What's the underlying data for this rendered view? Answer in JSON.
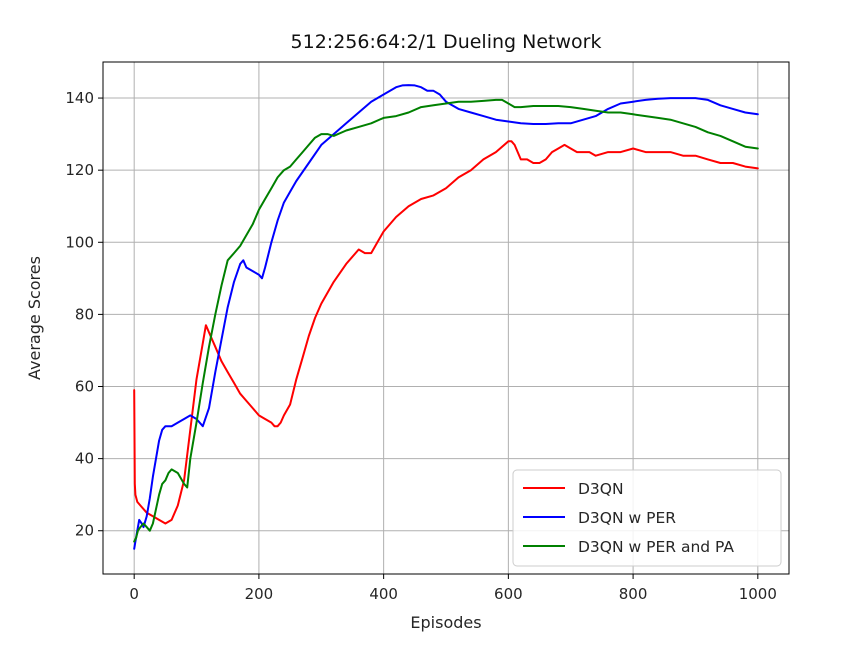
{
  "chart_data": {
    "type": "line",
    "title": "512:256:64:2/1 Dueling Network",
    "xlabel": "Episodes",
    "ylabel": "Average Scores",
    "xlim": [
      -50,
      1050
    ],
    "ylim": [
      8,
      150
    ],
    "xticks": [
      0,
      200,
      400,
      600,
      800,
      1000
    ],
    "yticks": [
      20,
      40,
      60,
      80,
      100,
      120,
      140
    ],
    "grid": true,
    "legend_position": "lower-right",
    "series": [
      {
        "name": "D3QN",
        "color": "#ff0000",
        "x": [
          0,
          1,
          2,
          5,
          10,
          20,
          30,
          40,
          50,
          60,
          70,
          80,
          90,
          100,
          110,
          115,
          120,
          130,
          140,
          150,
          160,
          170,
          180,
          190,
          200,
          210,
          220,
          225,
          230,
          235,
          240,
          250,
          260,
          270,
          280,
          290,
          300,
          320,
          340,
          360,
          370,
          375,
          380,
          390,
          400,
          420,
          440,
          460,
          480,
          500,
          520,
          540,
          560,
          580,
          600,
          605,
          610,
          620,
          630,
          640,
          650,
          660,
          670,
          680,
          690,
          700,
          710,
          720,
          730,
          740,
          760,
          780,
          800,
          820,
          840,
          860,
          880,
          900,
          920,
          940,
          960,
          980,
          1000
        ],
        "y": [
          59,
          33,
          30,
          28,
          27,
          25,
          24,
          23,
          22,
          23,
          27,
          34,
          48,
          62,
          72,
          77,
          75,
          71,
          67,
          64,
          61,
          58,
          56,
          54,
          52,
          51,
          50,
          49,
          49,
          50,
          52,
          55,
          62,
          68,
          74,
          79,
          83,
          89,
          94,
          98,
          97,
          97,
          97,
          100,
          103,
          107,
          110,
          112,
          113,
          115,
          118,
          120,
          123,
          125,
          128,
          128,
          127,
          123,
          123,
          122,
          122,
          123,
          125,
          126,
          127,
          126,
          125,
          125,
          125,
          124,
          125,
          125,
          126,
          125,
          125,
          125,
          124,
          124,
          123,
          122,
          122,
          121,
          120.5
        ]
      },
      {
        "name": "D3QN w PER",
        "color": "#0000ff",
        "x": [
          0,
          2,
          5,
          8,
          12,
          15,
          20,
          25,
          30,
          35,
          40,
          45,
          50,
          60,
          70,
          80,
          90,
          100,
          110,
          120,
          130,
          140,
          150,
          160,
          170,
          175,
          180,
          190,
          200,
          205,
          210,
          220,
          230,
          240,
          250,
          260,
          280,
          300,
          320,
          340,
          360,
          380,
          400,
          420,
          430,
          440,
          450,
          460,
          470,
          480,
          490,
          500,
          520,
          540,
          560,
          580,
          600,
          620,
          640,
          660,
          680,
          700,
          720,
          740,
          760,
          780,
          800,
          820,
          840,
          860,
          880,
          900,
          920,
          940,
          960,
          980,
          1000
        ],
        "y": [
          15,
          17,
          20,
          23,
          22,
          21,
          24,
          29,
          35,
          40,
          45,
          48,
          49,
          49,
          50,
          51,
          52,
          51,
          49,
          54,
          64,
          73,
          82,
          89,
          94,
          95,
          93,
          92,
          91,
          90,
          93,
          100,
          106,
          111,
          114,
          117,
          122,
          127,
          130,
          133,
          136,
          139,
          141,
          143,
          143.5,
          143.6,
          143.5,
          143,
          142,
          142,
          141,
          139,
          137,
          136,
          135,
          134,
          133.5,
          133,
          132.8,
          132.8,
          133,
          133,
          134,
          135,
          137,
          138.5,
          139,
          139.5,
          139.8,
          140,
          140,
          140,
          139.5,
          138,
          137,
          136,
          135.5
        ]
      },
      {
        "name": "D3QN w PER and PA",
        "color": "#008000",
        "x": [
          0,
          3,
          6,
          10,
          15,
          20,
          25,
          30,
          35,
          40,
          45,
          50,
          55,
          60,
          70,
          80,
          85,
          90,
          100,
          110,
          120,
          130,
          140,
          150,
          160,
          170,
          180,
          190,
          200,
          210,
          220,
          230,
          240,
          250,
          260,
          270,
          280,
          290,
          300,
          310,
          320,
          340,
          360,
          380,
          400,
          420,
          440,
          460,
          480,
          500,
          520,
          540,
          560,
          580,
          590,
          600,
          610,
          620,
          640,
          660,
          680,
          700,
          720,
          740,
          760,
          780,
          800,
          820,
          840,
          860,
          880,
          900,
          920,
          940,
          960,
          980,
          1000
        ],
        "y": [
          17,
          18,
          20,
          21,
          22,
          21,
          20,
          22,
          26,
          30,
          33,
          34,
          36,
          37,
          36,
          33,
          32,
          40,
          50,
          61,
          71,
          80,
          88,
          95,
          97,
          99,
          102,
          105,
          109,
          112,
          115,
          118,
          120,
          121,
          123,
          125,
          127,
          129,
          130,
          130,
          129.5,
          131,
          132,
          133,
          134.5,
          135,
          136,
          137.5,
          138,
          138.5,
          139,
          139,
          139.2,
          139.5,
          139.5,
          138.5,
          137.5,
          137.5,
          137.8,
          137.8,
          137.8,
          137.5,
          137,
          136.5,
          136,
          136,
          135.5,
          135,
          134.5,
          134,
          133,
          132,
          130.5,
          129.5,
          128,
          126.5,
          126
        ]
      }
    ]
  }
}
